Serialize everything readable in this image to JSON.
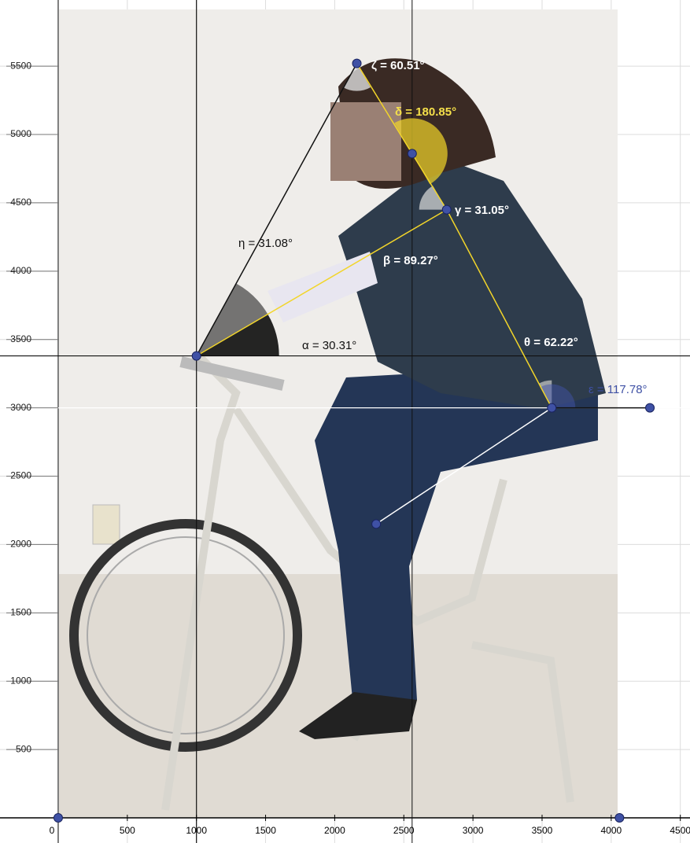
{
  "chart_data": {
    "type": "scatter",
    "xlim": [
      -421,
      4570
    ],
    "ylim": [
      -184,
      5984
    ],
    "xticks": [
      0,
      500,
      1000,
      1500,
      2000,
      2500,
      3000,
      3500,
      4000,
      4500
    ],
    "yticks": [
      500,
      1000,
      1500,
      2000,
      2500,
      3000,
      3500,
      4000,
      4500,
      5000,
      5500
    ],
    "grid": true,
    "color": "#3f51a5",
    "x": [
      0,
      4060,
      1000,
      2160,
      2560,
      2810,
      3570,
      4280,
      2300
    ],
    "y": [
      0,
      0,
      3380,
      5520,
      4860,
      4450,
      3000,
      3000,
      2150
    ],
    "annotations": [
      "ζ = 60.51°",
      "δ = 180.85°",
      "γ = 31.05°",
      "η = 31.08°",
      "β = 89.27°",
      "α = 30.31°",
      "θ = 62.22°",
      "ε = 117.78°"
    ]
  }
}
